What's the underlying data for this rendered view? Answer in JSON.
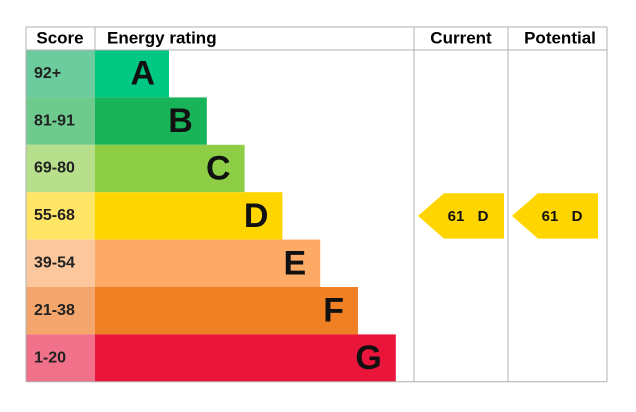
{
  "headers": {
    "score": "Score",
    "rating": "Energy rating",
    "current": "Current",
    "potential": "Potential"
  },
  "bands": [
    {
      "score": "92+",
      "letter": "A",
      "color": "#00c781",
      "cell_color": "#6ccc9e"
    },
    {
      "score": "81-91",
      "letter": "B",
      "color": "#19b459",
      "cell_color": "#6fca8e"
    },
    {
      "score": "69-80",
      "letter": "C",
      "color": "#8dce46",
      "cell_color": "#b8df8c"
    },
    {
      "score": "55-68",
      "letter": "D",
      "color": "#ffd500",
      "cell_color": "#ffe566"
    },
    {
      "score": "39-54",
      "letter": "E",
      "color": "#fcaa65",
      "cell_color": "#fcc79c"
    },
    {
      "score": "21-38",
      "letter": "F",
      "color": "#ef8023",
      "cell_color": "#f4a66c"
    },
    {
      "score": "1-20",
      "letter": "G",
      "color": "#e9153b",
      "cell_color": "#f07189"
    }
  ],
  "current": {
    "score": 61,
    "rating": "D"
  },
  "potential": {
    "score": 61,
    "rating": "D"
  }
}
